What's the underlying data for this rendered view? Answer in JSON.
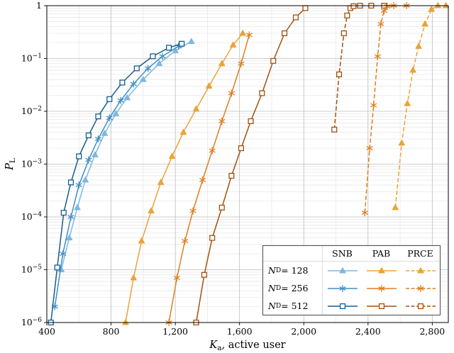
{
  "chart": {
    "background": "#ffffff",
    "axis_color": "#000000",
    "grid_major_color": "#bdbdbd",
    "grid_minor_color": "#e5e5e5",
    "ylabel": {
      "var": "P",
      "sub": "L"
    },
    "xlabel": {
      "var": "K",
      "sub": "a",
      "rest": ", active user"
    },
    "x_tick_labels": [
      "400",
      "800",
      "1,200",
      "1,600",
      "2,000",
      "2,400",
      "2,800"
    ],
    "x_tick_values": [
      400,
      800,
      1200,
      1600,
      2000,
      2400,
      2800
    ],
    "x_minor_values": [
      600,
      1000,
      1400,
      1800,
      2200,
      2600
    ],
    "y_tick_exps": [
      0,
      -1,
      -2,
      -3,
      -4,
      -5,
      -6
    ],
    "y_tick_labels": [
      "1",
      "10^-1",
      "10^-2",
      "10^-3",
      "10^-4",
      "10^-5",
      "10^-6"
    ]
  },
  "chart_data": {
    "type": "line",
    "title": "",
    "xlabel": "K_a, active user",
    "ylabel": "P_L",
    "x_range": [
      400,
      2900
    ],
    "y_range": [
      1e-06,
      1
    ],
    "y_scale": "log",
    "grid": true,
    "legend": {
      "position": "bottom-right",
      "columns": [
        "SNB",
        "PAB",
        "PRCE"
      ],
      "rows": [
        {
          "var": "N",
          "sub": "D",
          "rest": " = 128",
          "nd": "128"
        },
        {
          "var": "N",
          "sub": "D",
          "rest": " = 256",
          "nd": "256"
        },
        {
          "var": "N",
          "sub": "D",
          "rest": " = 512",
          "nd": "512"
        }
      ]
    },
    "series": [
      {
        "id": "snb-128",
        "group": "SNB",
        "nd": "128",
        "color": "#7db8e0",
        "style": "solid",
        "marker": "triangle",
        "points": [
          [
            490,
            1e-05
          ],
          [
            540,
            4e-05
          ],
          [
            590,
            0.00015
          ],
          [
            640,
            0.0005
          ],
          [
            700,
            0.0015
          ],
          [
            760,
            0.0038
          ],
          [
            830,
            0.009
          ],
          [
            900,
            0.018
          ],
          [
            1000,
            0.04
          ],
          [
            1100,
            0.08
          ],
          [
            1200,
            0.14
          ],
          [
            1300,
            0.21
          ]
        ]
      },
      {
        "id": "snb-256",
        "group": "SNB",
        "nd": "256",
        "color": "#3f8fc6",
        "style": "solid",
        "marker": "asterisk",
        "points": [
          [
            450,
            2e-06
          ],
          [
            500,
            2e-05
          ],
          [
            550,
            0.0001
          ],
          [
            600,
            0.0004
          ],
          [
            660,
            0.0012
          ],
          [
            720,
            0.003
          ],
          [
            790,
            0.0075
          ],
          [
            860,
            0.016
          ],
          [
            940,
            0.033
          ],
          [
            1030,
            0.065
          ],
          [
            1120,
            0.11
          ],
          [
            1220,
            0.17
          ]
        ]
      },
      {
        "id": "snb-512",
        "group": "SNB",
        "nd": "512",
        "color": "#175d8f",
        "style": "solid",
        "marker": "square",
        "points": [
          [
            425,
            1e-06
          ],
          [
            465,
            1.1e-05
          ],
          [
            505,
            0.00012
          ],
          [
            550,
            0.00045
          ],
          [
            600,
            0.0014
          ],
          [
            660,
            0.0035
          ],
          [
            720,
            0.008
          ],
          [
            790,
            0.017
          ],
          [
            870,
            0.035
          ],
          [
            960,
            0.065
          ],
          [
            1060,
            0.11
          ],
          [
            1160,
            0.16
          ],
          [
            1240,
            0.19
          ]
        ]
      },
      {
        "id": "pab-128",
        "group": "PAB",
        "nd": "128",
        "color": "#eaa339",
        "style": "solid",
        "marker": "triangle",
        "points": [
          [
            890,
            1e-06
          ],
          [
            940,
            7e-06
          ],
          [
            990,
            3.5e-05
          ],
          [
            1050,
            0.00013
          ],
          [
            1110,
            0.00045
          ],
          [
            1180,
            0.0014
          ],
          [
            1250,
            0.004
          ],
          [
            1330,
            0.011
          ],
          [
            1410,
            0.03
          ],
          [
            1490,
            0.08
          ],
          [
            1560,
            0.18
          ],
          [
            1620,
            0.3
          ]
        ]
      },
      {
        "id": "pab-256",
        "group": "PAB",
        "nd": "256",
        "color": "#df7f1e",
        "style": "solid",
        "marker": "asterisk",
        "points": [
          [
            1160,
            1e-06
          ],
          [
            1210,
            7e-06
          ],
          [
            1260,
            3.5e-05
          ],
          [
            1310,
            0.00013
          ],
          [
            1370,
            0.0005
          ],
          [
            1430,
            0.0018
          ],
          [
            1490,
            0.0065
          ],
          [
            1550,
            0.022
          ],
          [
            1610,
            0.08
          ],
          [
            1660,
            0.28
          ]
        ]
      },
      {
        "id": "pab-512",
        "group": "PAB",
        "nd": "512",
        "color": "#a5500c",
        "style": "solid",
        "marker": "square",
        "points": [
          [
            1330,
            1e-06
          ],
          [
            1380,
            8e-06
          ],
          [
            1430,
            4e-05
          ],
          [
            1490,
            0.00015
          ],
          [
            1550,
            0.0006
          ],
          [
            1610,
            0.002
          ],
          [
            1670,
            0.0065
          ],
          [
            1740,
            0.022
          ],
          [
            1810,
            0.09
          ],
          [
            1880,
            0.3
          ],
          [
            1950,
            0.6
          ],
          [
            2010,
            0.9
          ]
        ]
      },
      {
        "id": "prce-512",
        "group": "PRCE",
        "nd": "512",
        "color": "#a5500c",
        "style": "dashed",
        "marker": "square",
        "points": [
          [
            2190,
            0.0045
          ],
          [
            2220,
            0.05
          ],
          [
            2250,
            0.3
          ],
          [
            2270,
            0.65
          ],
          [
            2290,
            0.9
          ],
          [
            2310,
            0.98
          ],
          [
            2350,
            1
          ],
          [
            2420,
            1
          ],
          [
            2500,
            1
          ]
        ]
      },
      {
        "id": "prce-256",
        "group": "PRCE",
        "nd": "256",
        "color": "#df7f1e",
        "style": "dashed",
        "marker": "asterisk",
        "points": [
          [
            2380,
            0.00012
          ],
          [
            2410,
            0.002
          ],
          [
            2435,
            0.013
          ],
          [
            2460,
            0.11
          ],
          [
            2480,
            0.45
          ],
          [
            2500,
            0.8
          ],
          [
            2520,
            0.97
          ],
          [
            2560,
            1
          ],
          [
            2640,
            1
          ]
        ]
      },
      {
        "id": "prce-128",
        "group": "PRCE",
        "nd": "128",
        "color": "#eaa339",
        "style": "dashed",
        "marker": "triangle",
        "points": [
          [
            2570,
            0.00015
          ],
          [
            2610,
            0.0025
          ],
          [
            2645,
            0.014
          ],
          [
            2680,
            0.06
          ],
          [
            2715,
            0.17
          ],
          [
            2755,
            0.45
          ],
          [
            2795,
            0.85
          ],
          [
            2835,
            1
          ],
          [
            2885,
            1
          ]
        ]
      }
    ]
  }
}
